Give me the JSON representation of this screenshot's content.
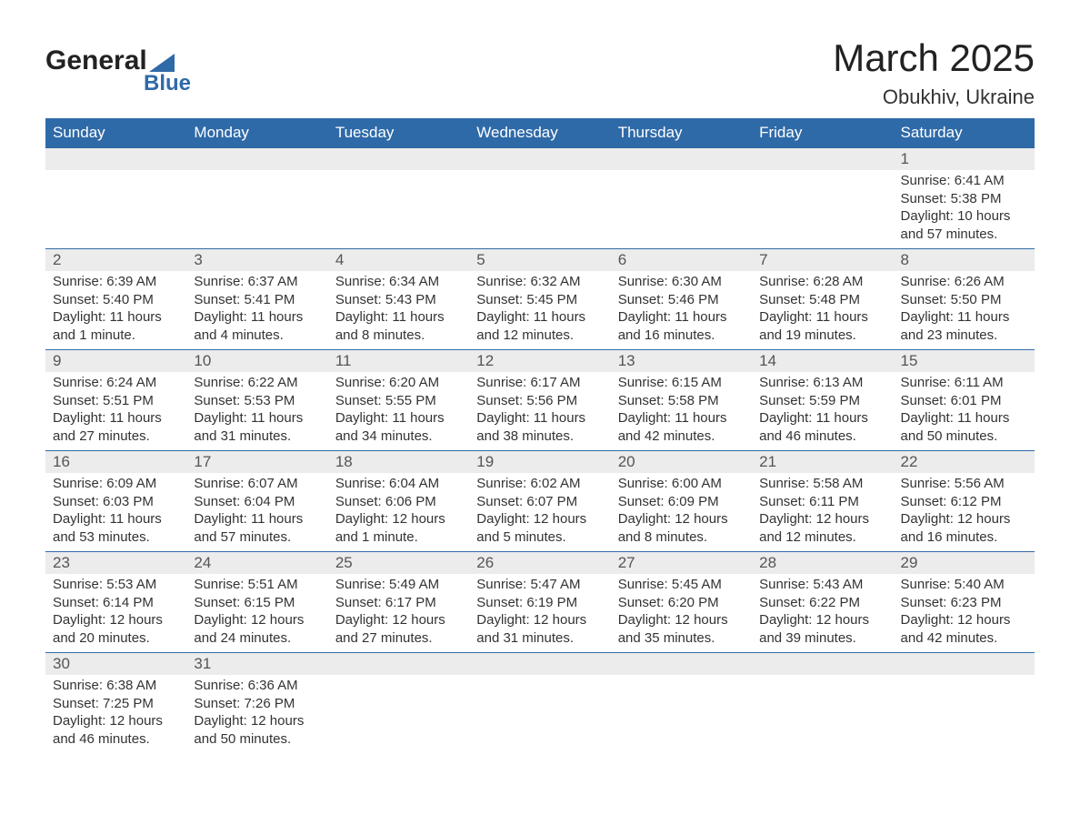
{
  "brand": {
    "line1": "General",
    "line2": "Blue"
  },
  "title": "March 2025",
  "location": "Obukhiv, Ukraine",
  "colors": {
    "header_bg": "#2f6aa8",
    "header_text": "#ffffff",
    "daynum_bg": "#ececec",
    "row_border": "#2f6aa8",
    "text": "#333333",
    "page_bg": "#ffffff"
  },
  "typography": {
    "title_fontsize": 42,
    "location_fontsize": 22,
    "header_fontsize": 17,
    "body_fontsize": 15,
    "font_family": "Arial"
  },
  "layout": {
    "columns": 7,
    "rows": 6,
    "start_day_index": 6
  },
  "weekdays": [
    "Sunday",
    "Monday",
    "Tuesday",
    "Wednesday",
    "Thursday",
    "Friday",
    "Saturday"
  ],
  "weeks": [
    [
      null,
      null,
      null,
      null,
      null,
      null,
      {
        "n": "1",
        "sunrise": "6:41 AM",
        "sunset": "5:38 PM",
        "daylight": "10 hours and 57 minutes."
      }
    ],
    [
      {
        "n": "2",
        "sunrise": "6:39 AM",
        "sunset": "5:40 PM",
        "daylight": "11 hours and 1 minute."
      },
      {
        "n": "3",
        "sunrise": "6:37 AM",
        "sunset": "5:41 PM",
        "daylight": "11 hours and 4 minutes."
      },
      {
        "n": "4",
        "sunrise": "6:34 AM",
        "sunset": "5:43 PM",
        "daylight": "11 hours and 8 minutes."
      },
      {
        "n": "5",
        "sunrise": "6:32 AM",
        "sunset": "5:45 PM",
        "daylight": "11 hours and 12 minutes."
      },
      {
        "n": "6",
        "sunrise": "6:30 AM",
        "sunset": "5:46 PM",
        "daylight": "11 hours and 16 minutes."
      },
      {
        "n": "7",
        "sunrise": "6:28 AM",
        "sunset": "5:48 PM",
        "daylight": "11 hours and 19 minutes."
      },
      {
        "n": "8",
        "sunrise": "6:26 AM",
        "sunset": "5:50 PM",
        "daylight": "11 hours and 23 minutes."
      }
    ],
    [
      {
        "n": "9",
        "sunrise": "6:24 AM",
        "sunset": "5:51 PM",
        "daylight": "11 hours and 27 minutes."
      },
      {
        "n": "10",
        "sunrise": "6:22 AM",
        "sunset": "5:53 PM",
        "daylight": "11 hours and 31 minutes."
      },
      {
        "n": "11",
        "sunrise": "6:20 AM",
        "sunset": "5:55 PM",
        "daylight": "11 hours and 34 minutes."
      },
      {
        "n": "12",
        "sunrise": "6:17 AM",
        "sunset": "5:56 PM",
        "daylight": "11 hours and 38 minutes."
      },
      {
        "n": "13",
        "sunrise": "6:15 AM",
        "sunset": "5:58 PM",
        "daylight": "11 hours and 42 minutes."
      },
      {
        "n": "14",
        "sunrise": "6:13 AM",
        "sunset": "5:59 PM",
        "daylight": "11 hours and 46 minutes."
      },
      {
        "n": "15",
        "sunrise": "6:11 AM",
        "sunset": "6:01 PM",
        "daylight": "11 hours and 50 minutes."
      }
    ],
    [
      {
        "n": "16",
        "sunrise": "6:09 AM",
        "sunset": "6:03 PM",
        "daylight": "11 hours and 53 minutes."
      },
      {
        "n": "17",
        "sunrise": "6:07 AM",
        "sunset": "6:04 PM",
        "daylight": "11 hours and 57 minutes."
      },
      {
        "n": "18",
        "sunrise": "6:04 AM",
        "sunset": "6:06 PM",
        "daylight": "12 hours and 1 minute."
      },
      {
        "n": "19",
        "sunrise": "6:02 AM",
        "sunset": "6:07 PM",
        "daylight": "12 hours and 5 minutes."
      },
      {
        "n": "20",
        "sunrise": "6:00 AM",
        "sunset": "6:09 PM",
        "daylight": "12 hours and 8 minutes."
      },
      {
        "n": "21",
        "sunrise": "5:58 AM",
        "sunset": "6:11 PM",
        "daylight": "12 hours and 12 minutes."
      },
      {
        "n": "22",
        "sunrise": "5:56 AM",
        "sunset": "6:12 PM",
        "daylight": "12 hours and 16 minutes."
      }
    ],
    [
      {
        "n": "23",
        "sunrise": "5:53 AM",
        "sunset": "6:14 PM",
        "daylight": "12 hours and 20 minutes."
      },
      {
        "n": "24",
        "sunrise": "5:51 AM",
        "sunset": "6:15 PM",
        "daylight": "12 hours and 24 minutes."
      },
      {
        "n": "25",
        "sunrise": "5:49 AM",
        "sunset": "6:17 PM",
        "daylight": "12 hours and 27 minutes."
      },
      {
        "n": "26",
        "sunrise": "5:47 AM",
        "sunset": "6:19 PM",
        "daylight": "12 hours and 31 minutes."
      },
      {
        "n": "27",
        "sunrise": "5:45 AM",
        "sunset": "6:20 PM",
        "daylight": "12 hours and 35 minutes."
      },
      {
        "n": "28",
        "sunrise": "5:43 AM",
        "sunset": "6:22 PM",
        "daylight": "12 hours and 39 minutes."
      },
      {
        "n": "29",
        "sunrise": "5:40 AM",
        "sunset": "6:23 PM",
        "daylight": "12 hours and 42 minutes."
      }
    ],
    [
      {
        "n": "30",
        "sunrise": "6:38 AM",
        "sunset": "7:25 PM",
        "daylight": "12 hours and 46 minutes."
      },
      {
        "n": "31",
        "sunrise": "6:36 AM",
        "sunset": "7:26 PM",
        "daylight": "12 hours and 50 minutes."
      },
      null,
      null,
      null,
      null,
      null
    ]
  ],
  "labels": {
    "sunrise": "Sunrise: ",
    "sunset": "Sunset: ",
    "daylight": "Daylight: "
  }
}
